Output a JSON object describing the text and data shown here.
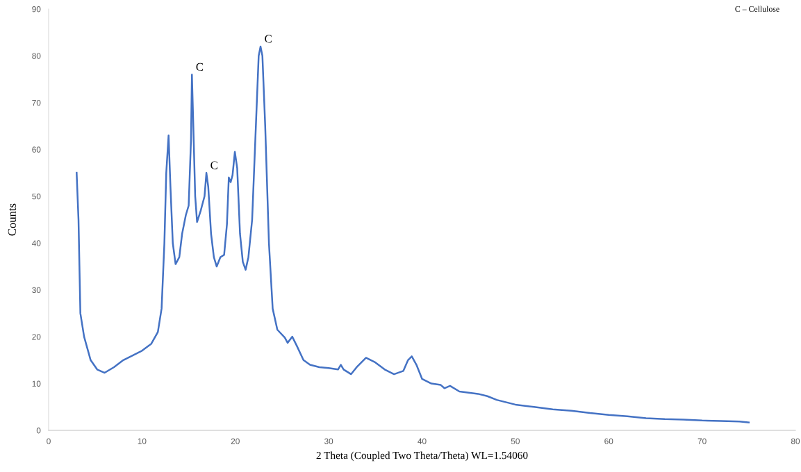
{
  "chart_data": {
    "type": "line",
    "xlabel": "2 Theta (Coupled Two Theta/Theta) WL=1.54060",
    "ylabel": "Counts",
    "xlim": [
      0,
      80
    ],
    "xticks": [
      0,
      10,
      20,
      30,
      40,
      50,
      60,
      70,
      80
    ],
    "ylim": [
      0,
      90
    ],
    "yticks": [
      0,
      10,
      20,
      30,
      40,
      50,
      60,
      70,
      80,
      90
    ],
    "grid": false,
    "marker": "none",
    "line_style": "solid",
    "series": [
      {
        "color": "#4472c4",
        "x": [
          3,
          3.2,
          3.4,
          3.8,
          4.5,
          5.2,
          6,
          7,
          8,
          9,
          10,
          11,
          11.7,
          12.1,
          12.4,
          12.6,
          12.85,
          13.05,
          13.3,
          13.6,
          14,
          14.3,
          14.7,
          15,
          15.25,
          15.35,
          15.5,
          15.7,
          15.9,
          16.3,
          16.7,
          16.9,
          17.1,
          17.4,
          17.7,
          18,
          18.4,
          18.8,
          19.1,
          19.3,
          19.5,
          19.7,
          19.95,
          20.2,
          20.5,
          20.8,
          21.1,
          21.4,
          21.8,
          22.2,
          22.5,
          22.7,
          22.9,
          23.2,
          23.6,
          24.0,
          24.5,
          25.3,
          25.6,
          26.1,
          26.6,
          27.3,
          28,
          29,
          30,
          31,
          31.3,
          31.6,
          32.4,
          33,
          34,
          35,
          36,
          37,
          38,
          38.5,
          38.9,
          39.4,
          40,
          41,
          42,
          42.4,
          43,
          44,
          46,
          47,
          48,
          50,
          52,
          54,
          56,
          58,
          60,
          62,
          64,
          66,
          68,
          70,
          72,
          74,
          75
        ],
        "values": [
          55,
          45,
          25,
          20,
          15,
          13,
          12.3,
          13.5,
          15,
          16,
          17,
          18.5,
          21,
          26,
          40,
          55,
          63,
          52,
          40,
          35.5,
          37,
          42,
          46,
          48,
          62,
          76,
          65,
          50,
          44.5,
          47,
          50,
          55,
          52,
          42,
          37,
          35,
          37,
          37.5,
          44,
          54,
          53,
          54.5,
          59.5,
          56,
          42,
          36,
          34.3,
          37,
          45,
          65,
          80,
          82,
          80,
          65,
          40,
          26,
          21.5,
          19.8,
          18.7,
          20,
          18,
          15,
          14,
          13.5,
          13.3,
          13,
          14,
          13,
          12,
          13.5,
          15.5,
          14.5,
          13,
          12,
          12.7,
          15,
          15.8,
          14,
          11,
          10,
          9.7,
          9,
          9.5,
          8.3,
          7.8,
          7.3,
          6.5,
          5.5,
          5,
          4.5,
          4.2,
          3.7,
          3.3,
          3.0,
          2.6,
          2.4,
          2.3,
          2.1,
          2.0,
          1.9,
          1.7
        ]
      }
    ],
    "annotations": [
      {
        "text": "C",
        "x": 15.35,
        "y": 76
      },
      {
        "text": "C",
        "x": 16.9,
        "y": 55
      },
      {
        "text": "C",
        "x": 22.7,
        "y": 82
      },
      "C – Cellulose"
    ]
  }
}
